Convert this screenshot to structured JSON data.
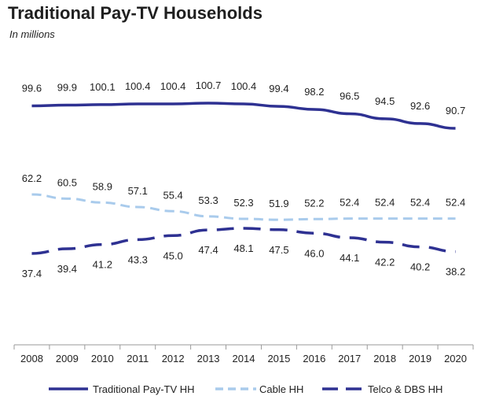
{
  "chart_data": {
    "type": "line",
    "title": "Traditional Pay-TV Households",
    "subtitle": "In millions",
    "xlabel": "",
    "ylabel": "",
    "ylim": [
      0,
      110
    ],
    "grid": false,
    "legend_position": "bottom",
    "x": [
      "2008",
      "2009",
      "2010",
      "2011",
      "2012",
      "2013",
      "2014",
      "2015",
      "2016",
      "2017",
      "2018",
      "2019",
      "2020"
    ],
    "series": [
      {
        "name": "Traditional Pay-TV HH",
        "color": "#2e3192",
        "style": "solid",
        "values": [
          99.6,
          99.9,
          100.1,
          100.4,
          100.4,
          100.7,
          100.4,
          99.4,
          98.2,
          96.5,
          94.5,
          92.6,
          90.7
        ],
        "label_strings": [
          "99.6",
          "99.9",
          "100.1",
          "100.4",
          "100.4",
          "100.7",
          "100.4",
          "99.4",
          "98.2",
          "96.5",
          "94.5",
          "92.6",
          "90.7"
        ]
      },
      {
        "name": "Cable HH",
        "color": "#a9cbec",
        "style": "dashed",
        "values": [
          62.2,
          60.5,
          58.9,
          57.1,
          55.4,
          53.3,
          52.3,
          51.9,
          52.2,
          52.4,
          52.4,
          52.4,
          52.4
        ],
        "label_strings": [
          "62.2",
          "60.5",
          "58.9",
          "57.1",
          "55.4",
          "53.3",
          "52.3",
          "51.9",
          "52.2",
          "52.4",
          "52.4",
          "52.4",
          "52.4"
        ]
      },
      {
        "name": "Telco & DBS HH",
        "color": "#2e3192",
        "style": "longdash",
        "values": [
          37.4,
          39.4,
          41.2,
          43.3,
          45.0,
          47.4,
          48.1,
          47.5,
          46.0,
          44.1,
          42.2,
          40.2,
          38.2
        ],
        "label_strings": [
          "37.4",
          "39.4",
          "41.2",
          "43.3",
          "45.0",
          "47.4",
          "48.1",
          "47.5",
          "46.0",
          "44.1",
          "42.2",
          "40.2",
          "38.2"
        ]
      }
    ]
  }
}
